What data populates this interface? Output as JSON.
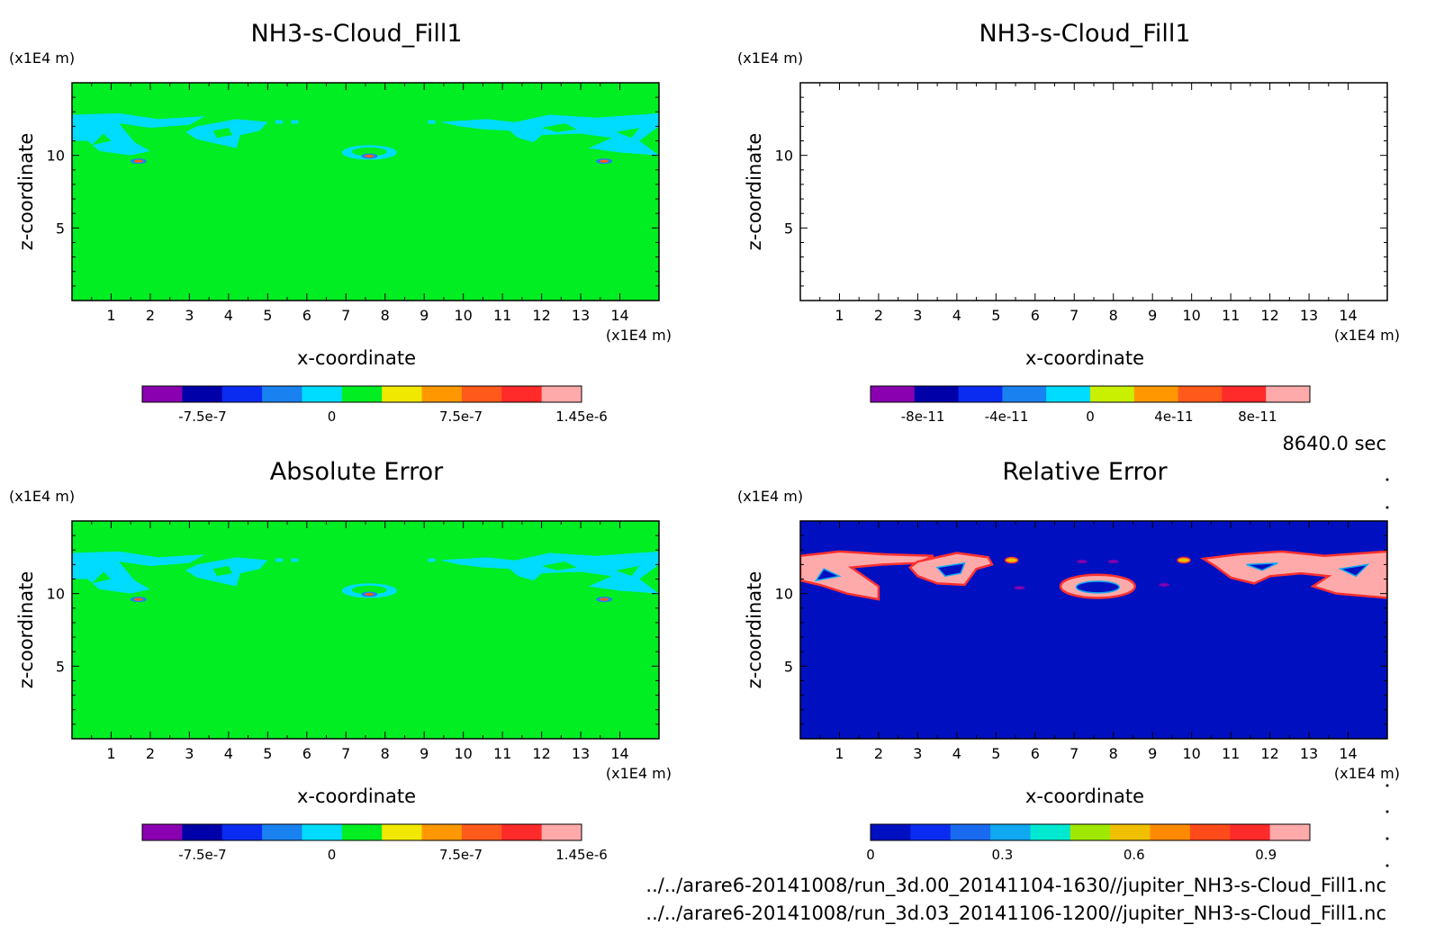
{
  "colors": {
    "background": "#00ee22",
    "cyan": "#00dcff",
    "pink": "#ffaaaa",
    "relative_background": "#0010c0",
    "relative_edge": "#ff3030"
  },
  "time_label": "8640.0 sec",
  "footer": {
    "file1": "../../arare6-20141008/run_3d.00_20141104-1630//jupiter_NH3-s-Cloud_Fill1.nc",
    "file2": "../../arare6-20141008/run_3d.03_20141106-1200//jupiter_NH3-s-Cloud_Fill1.nc"
  },
  "chart_data": [
    {
      "type": "heatmap",
      "title": "NH3-s-Cloud_Fill1",
      "xlabel": "x-coordinate",
      "ylabel": "z-coordinate",
      "x_unit": "(x1E4 m)",
      "y_unit": "(x1E4 m)",
      "xlim": [
        0,
        15
      ],
      "ylim": [
        0,
        15
      ],
      "x_ticks": [
        "1",
        "2",
        "3",
        "4",
        "5",
        "6",
        "7",
        "8",
        "9",
        "10",
        "11",
        "12",
        "13",
        "14"
      ],
      "y_ticks": [
        "5",
        "10"
      ],
      "fill": "background",
      "features": "cloud",
      "colorbar": {
        "range": [
          -1.1e-06,
          1.45e-06
        ],
        "labels": [
          {
            "v": -7.5e-07,
            "t": "-7.5e-7"
          },
          {
            "v": 0,
            "t": "0"
          },
          {
            "v": 7.5e-07,
            "t": "7.5e-7"
          },
          {
            "v": 1.45e-06,
            "t": "1.45e-6"
          }
        ],
        "colors": [
          "#8a00b0",
          "#0000a8",
          "#0a2cf0",
          "#1a82f0",
          "#00dcff",
          "#00ee22",
          "#f0e800",
          "#ff9800",
          "#ff5a1c",
          "#ff2a2a",
          "#ffaaaa"
        ]
      }
    },
    {
      "type": "heatmap",
      "title": "NH3-s-Cloud_Fill1",
      "xlabel": "x-coordinate",
      "ylabel": "z-coordinate",
      "x_unit": "(x1E4 m)",
      "y_unit": "(x1E4 m)",
      "xlim": [
        0,
        15
      ],
      "ylim": [
        0,
        15
      ],
      "x_ticks": [
        "1",
        "2",
        "3",
        "4",
        "5",
        "6",
        "7",
        "8",
        "9",
        "10",
        "11",
        "12",
        "13",
        "14"
      ],
      "y_ticks": [
        "5",
        "10"
      ],
      "fill": "none",
      "features": "none",
      "colorbar": {
        "range": [
          -1.05e-10,
          1.05e-10
        ],
        "labels": [
          {
            "v": -8e-11,
            "t": "-8e-11"
          },
          {
            "v": -4e-11,
            "t": "-4e-11"
          },
          {
            "v": 0,
            "t": "0"
          },
          {
            "v": 4e-11,
            "t": "4e-11"
          },
          {
            "v": 8e-11,
            "t": "8e-11"
          }
        ],
        "colors": [
          "#8a00b0",
          "#0000a8",
          "#0a2cf0",
          "#1a82f0",
          "#00dcff",
          "#c8f000",
          "#ff9800",
          "#ff5a1c",
          "#ff2a2a",
          "#ffaaaa"
        ]
      }
    },
    {
      "type": "heatmap",
      "title": "Absolute Error",
      "xlabel": "x-coordinate",
      "ylabel": "z-coordinate",
      "x_unit": "(x1E4 m)",
      "y_unit": "(x1E4 m)",
      "xlim": [
        0,
        15
      ],
      "ylim": [
        0,
        15
      ],
      "x_ticks": [
        "1",
        "2",
        "3",
        "4",
        "5",
        "6",
        "7",
        "8",
        "9",
        "10",
        "11",
        "12",
        "13",
        "14"
      ],
      "y_ticks": [
        "5",
        "10"
      ],
      "fill": "background",
      "features": "cloud",
      "colorbar": {
        "range": [
          -1.1e-06,
          1.45e-06
        ],
        "labels": [
          {
            "v": -7.5e-07,
            "t": "-7.5e-7"
          },
          {
            "v": 0,
            "t": "0"
          },
          {
            "v": 7.5e-07,
            "t": "7.5e-7"
          },
          {
            "v": 1.45e-06,
            "t": "1.45e-6"
          }
        ],
        "colors": [
          "#8a00b0",
          "#0000a8",
          "#0a2cf0",
          "#1a82f0",
          "#00dcff",
          "#00ee22",
          "#f0e800",
          "#ff9800",
          "#ff5a1c",
          "#ff2a2a",
          "#ffaaaa"
        ]
      }
    },
    {
      "type": "heatmap",
      "title": "Relative Error",
      "xlabel": "x-coordinate",
      "ylabel": "z-coordinate",
      "x_unit": "(x1E4 m)",
      "y_unit": "(x1E4 m)",
      "xlim": [
        0,
        15
      ],
      "ylim": [
        0,
        15
      ],
      "x_ticks": [
        "1",
        "2",
        "3",
        "4",
        "5",
        "6",
        "7",
        "8",
        "9",
        "10",
        "11",
        "12",
        "13",
        "14"
      ],
      "y_ticks": [
        "5",
        "10"
      ],
      "fill": "relative_background",
      "features": "relative",
      "colorbar": {
        "range": [
          0,
          1
        ],
        "labels": [
          {
            "v": 0,
            "t": "0"
          },
          {
            "v": 0.3,
            "t": "0.3"
          },
          {
            "v": 0.6,
            "t": "0.6"
          },
          {
            "v": 0.9,
            "t": "0.9"
          }
        ],
        "colors": [
          "#0010c0",
          "#0a2cf0",
          "#1a6af0",
          "#10a8f0",
          "#00e8d0",
          "#a0e800",
          "#f0c000",
          "#ff8a00",
          "#ff4a1a",
          "#ff2a2a",
          "#ffaaaa"
        ]
      }
    }
  ]
}
